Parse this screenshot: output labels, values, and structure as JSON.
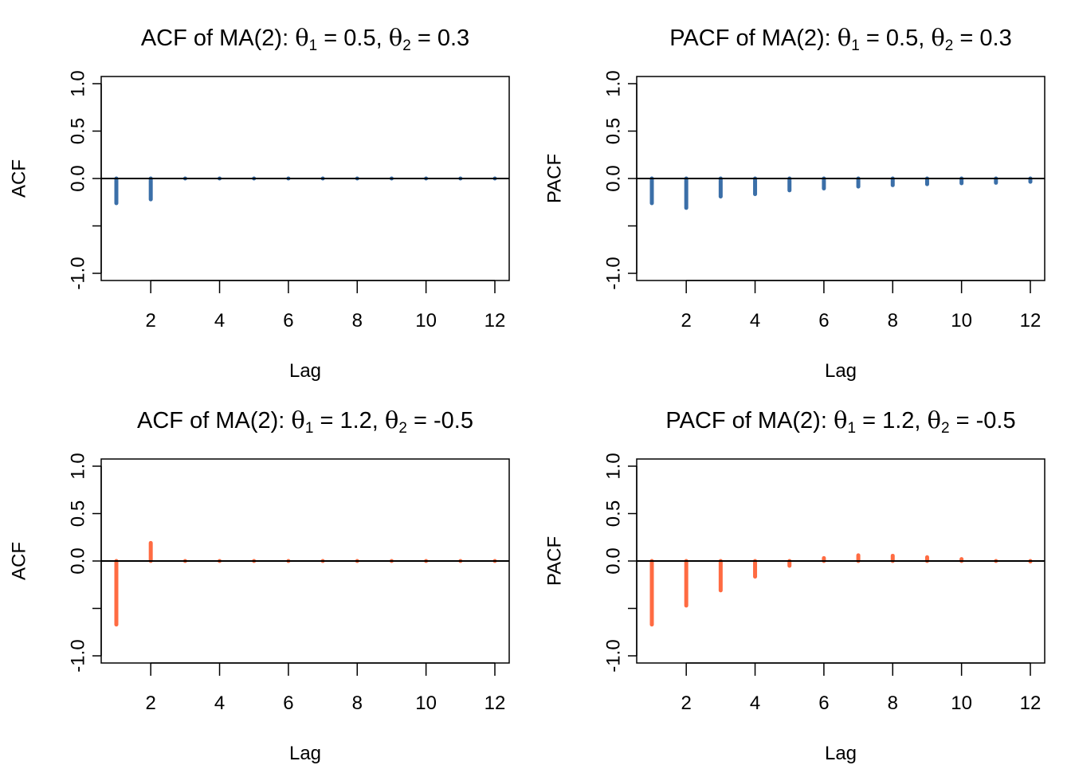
{
  "chart_data": [
    {
      "type": "bar",
      "id": "acf-ma2-a",
      "title": {
        "prefix": "ACF of MA(2): ",
        "theta_symbol": "θ",
        "theta1": "0.5",
        "theta2": "0.3"
      },
      "xlabel": "Lag",
      "ylabel": "ACF",
      "x": [
        1,
        2,
        3,
        4,
        5,
        6,
        7,
        8,
        9,
        10,
        11,
        12
      ],
      "values": [
        -0.26,
        -0.22,
        0.0,
        0.0,
        0.0,
        0.0,
        0.0,
        0.0,
        0.0,
        0.0,
        0.0,
        0.0
      ],
      "color": "#3B6FA8",
      "xticks": [
        2,
        4,
        6,
        8,
        10,
        12
      ],
      "yticks": [
        1.0,
        0.5,
        0.0,
        -0.5,
        -1.0
      ],
      "ytick_labels": [
        "1.0",
        "0.5",
        "0.0",
        "",
        "-1.0"
      ],
      "xlim": [
        0.5,
        12.4
      ],
      "ylim": [
        -1.07,
        1.07
      ],
      "zero_line": true,
      "grid": false
    },
    {
      "type": "bar",
      "id": "pacf-ma2-a",
      "title": {
        "prefix": "PACF of MA(2): ",
        "theta_symbol": "θ",
        "theta1": "0.5",
        "theta2": "0.3"
      },
      "xlabel": "Lag",
      "ylabel": "PACF",
      "x": [
        1,
        2,
        3,
        4,
        5,
        6,
        7,
        8,
        9,
        10,
        11,
        12
      ],
      "values": [
        -0.26,
        -0.31,
        -0.19,
        -0.165,
        -0.125,
        -0.105,
        -0.085,
        -0.07,
        -0.06,
        -0.05,
        -0.045,
        -0.035
      ],
      "color": "#3B6FA8",
      "xticks": [
        2,
        4,
        6,
        8,
        10,
        12
      ],
      "yticks": [
        1.0,
        0.5,
        0.0,
        -0.5,
        -1.0
      ],
      "ytick_labels": [
        "1.0",
        "0.5",
        "0.0",
        "",
        "-1.0"
      ],
      "xlim": [
        0.5,
        12.4
      ],
      "ylim": [
        -1.07,
        1.07
      ],
      "zero_line": true,
      "grid": false
    },
    {
      "type": "bar",
      "id": "acf-ma2-b",
      "title": {
        "prefix": "ACF of MA(2): ",
        "theta_symbol": "θ",
        "theta1": "1.2",
        "theta2": "-0.5"
      },
      "xlabel": "Lag",
      "ylabel": "ACF",
      "x": [
        1,
        2,
        3,
        4,
        5,
        6,
        7,
        8,
        9,
        10,
        11,
        12
      ],
      "values": [
        -0.67,
        0.19,
        0.0,
        0.0,
        0.0,
        0.0,
        0.0,
        0.0,
        0.0,
        0.0,
        0.0,
        0.0
      ],
      "color": "#FF6B42",
      "xticks": [
        2,
        4,
        6,
        8,
        10,
        12
      ],
      "yticks": [
        1.0,
        0.5,
        0.0,
        -0.5,
        -1.0
      ],
      "ytick_labels": [
        "1.0",
        "0.5",
        "0.0",
        "",
        "-1.0"
      ],
      "xlim": [
        0.5,
        12.4
      ],
      "ylim": [
        -1.07,
        1.07
      ],
      "zero_line": true,
      "grid": false
    },
    {
      "type": "bar",
      "id": "pacf-ma2-b",
      "title": {
        "prefix": "PACF of MA(2): ",
        "theta_symbol": "θ",
        "theta1": "1.2",
        "theta2": "-0.5"
      },
      "xlabel": "Lag",
      "ylabel": "PACF",
      "x": [
        1,
        2,
        3,
        4,
        5,
        6,
        7,
        8,
        9,
        10,
        11,
        12
      ],
      "values": [
        -0.67,
        -0.47,
        -0.31,
        -0.165,
        -0.05,
        0.03,
        0.06,
        0.055,
        0.04,
        0.02,
        0.0,
        -0.005
      ],
      "color": "#FF6B42",
      "xticks": [
        2,
        4,
        6,
        8,
        10,
        12
      ],
      "yticks": [
        1.0,
        0.5,
        0.0,
        -0.5,
        -1.0
      ],
      "ytick_labels": [
        "1.0",
        "0.5",
        "0.0",
        "",
        "-1.0"
      ],
      "xlim": [
        0.5,
        12.4
      ],
      "ylim": [
        -1.07,
        1.07
      ],
      "zero_line": true,
      "grid": false
    }
  ]
}
